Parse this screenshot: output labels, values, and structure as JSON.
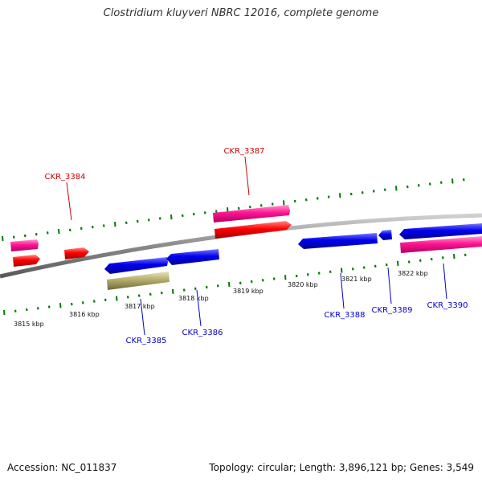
{
  "title": "Clostridium kluyveri NBRC 12016, complete genome",
  "footer": {
    "accession": "Accession: NC_011837",
    "stats": "Topology: circular; Length: 3,896,121 bp; Genes: 3,549"
  },
  "colors": {
    "forward_cds": "#ff0000",
    "forward_gene": "#ff1493",
    "reverse_cds": "#0000ee",
    "reverse_other": "#b3ad6e",
    "tick_marks": "#007a00",
    "backbone": "#888888",
    "forward_label": "#cc0000",
    "reverse_label": "#0000cc"
  },
  "kbp_labels": [
    "3815 kbp",
    "3816 kbp",
    "3817 kbp",
    "3818 kbp",
    "3819 kbp",
    "3820 kbp",
    "3821 kbp",
    "3822 kbp"
  ],
  "gene_labels": {
    "forward": [
      "CKR_3384",
      "CKR_3387"
    ],
    "reverse": [
      "CKR_3385",
      "CKR_3386",
      "CKR_3388",
      "CKR_3389",
      "CKR_3390"
    ]
  }
}
